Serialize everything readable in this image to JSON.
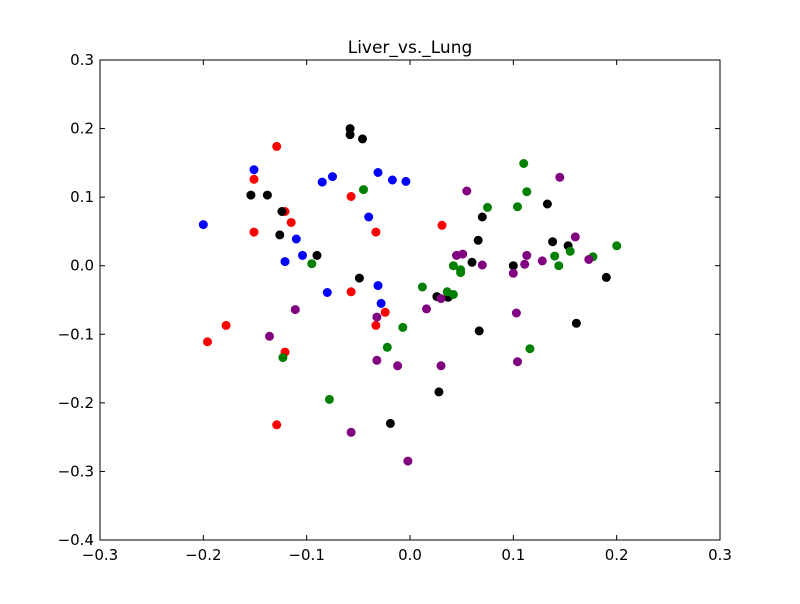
{
  "chart_data": {
    "type": "scatter",
    "title": "Liver_vs._Lung",
    "xlabel": "",
    "ylabel": "",
    "xlim": [
      -0.3,
      0.3
    ],
    "ylim": [
      -0.4,
      0.3
    ],
    "xticks": [
      "−0.3",
      "−0.2",
      "−0.1",
      "0.0",
      "0.1",
      "0.2",
      "0.3"
    ],
    "yticks": [
      "0.3",
      "0.2",
      "0.1",
      "0.0",
      "−0.1",
      "−0.2",
      "−0.3",
      "−0.4"
    ],
    "grid": false,
    "legend": "none",
    "series": [
      {
        "color": "#0000ff",
        "points": [
          [
            -0.2,
            0.06
          ],
          [
            -0.151,
            0.14
          ],
          [
            -0.121,
            0.006
          ],
          [
            -0.11,
            0.039
          ],
          [
            -0.104,
            0.015
          ],
          [
            -0.085,
            0.122
          ],
          [
            -0.08,
            -0.039
          ],
          [
            -0.075,
            0.13
          ],
          [
            -0.04,
            0.071
          ],
          [
            -0.031,
            0.136
          ],
          [
            -0.031,
            -0.029
          ],
          [
            -0.028,
            -0.055
          ],
          [
            -0.017,
            0.125
          ],
          [
            -0.004,
            0.123
          ]
        ]
      },
      {
        "color": "#ff0000",
        "points": [
          [
            -0.196,
            -0.111
          ],
          [
            -0.178,
            -0.087
          ],
          [
            -0.151,
            0.126
          ],
          [
            -0.151,
            0.049
          ],
          [
            -0.129,
            0.174
          ],
          [
            -0.129,
            -0.232
          ],
          [
            -0.121,
            0.079
          ],
          [
            -0.121,
            -0.126
          ],
          [
            -0.115,
            0.063
          ],
          [
            -0.057,
            0.101
          ],
          [
            -0.057,
            -0.038
          ],
          [
            -0.033,
            0.049
          ],
          [
            -0.033,
            -0.087
          ],
          [
            -0.024,
            -0.068
          ],
          [
            0.031,
            0.059
          ]
        ]
      },
      {
        "color": "#000000",
        "points": [
          [
            -0.154,
            0.103
          ],
          [
            -0.138,
            0.103
          ],
          [
            -0.126,
            0.045
          ],
          [
            -0.124,
            0.079
          ],
          [
            -0.09,
            0.015
          ],
          [
            -0.058,
            0.2
          ],
          [
            -0.058,
            0.191
          ],
          [
            -0.049,
            -0.018
          ],
          [
            -0.046,
            0.185
          ],
          [
            -0.019,
            -0.23
          ],
          [
            0.026,
            -0.045
          ],
          [
            0.028,
            -0.184
          ],
          [
            0.037,
            -0.046
          ],
          [
            0.06,
            0.005
          ],
          [
            0.066,
            0.037
          ],
          [
            0.067,
            -0.095
          ],
          [
            0.07,
            0.071
          ],
          [
            0.1,
            0.0
          ],
          [
            0.133,
            0.09
          ],
          [
            0.138,
            0.035
          ],
          [
            0.153,
            0.029
          ],
          [
            0.161,
            -0.084
          ],
          [
            0.19,
            -0.017
          ]
        ]
      },
      {
        "color": "#008000",
        "points": [
          [
            -0.123,
            -0.134
          ],
          [
            -0.095,
            0.003
          ],
          [
            -0.078,
            -0.195
          ],
          [
            -0.045,
            0.111
          ],
          [
            -0.022,
            -0.119
          ],
          [
            -0.007,
            -0.09
          ],
          [
            0.012,
            -0.031
          ],
          [
            0.036,
            -0.038
          ],
          [
            0.042,
            -0.042
          ],
          [
            0.042,
            0.0
          ],
          [
            0.049,
            -0.006
          ],
          [
            0.049,
            -0.01
          ],
          [
            0.075,
            0.085
          ],
          [
            0.104,
            0.086
          ],
          [
            0.11,
            0.149
          ],
          [
            0.113,
            0.108
          ],
          [
            0.116,
            -0.121
          ],
          [
            0.14,
            0.014
          ],
          [
            0.144,
            0.0
          ],
          [
            0.155,
            0.021
          ],
          [
            0.177,
            0.013
          ],
          [
            0.2,
            0.029
          ]
        ]
      },
      {
        "color": "#800080",
        "points": [
          [
            -0.136,
            -0.103
          ],
          [
            -0.111,
            -0.064
          ],
          [
            -0.057,
            -0.243
          ],
          [
            -0.032,
            -0.075
          ],
          [
            -0.032,
            -0.138
          ],
          [
            -0.012,
            -0.146
          ],
          [
            -0.002,
            -0.285
          ],
          [
            0.016,
            -0.063
          ],
          [
            0.03,
            -0.048
          ],
          [
            0.03,
            -0.146
          ],
          [
            0.045,
            0.015
          ],
          [
            0.051,
            0.017
          ],
          [
            0.055,
            0.109
          ],
          [
            0.07,
            0.001
          ],
          [
            0.1,
            -0.011
          ],
          [
            0.103,
            -0.069
          ],
          [
            0.104,
            -0.14
          ],
          [
            0.111,
            0.002
          ],
          [
            0.113,
            0.015
          ],
          [
            0.128,
            0.007
          ],
          [
            0.145,
            0.129
          ],
          [
            0.16,
            0.042
          ],
          [
            0.173,
            0.009
          ]
        ]
      }
    ]
  }
}
